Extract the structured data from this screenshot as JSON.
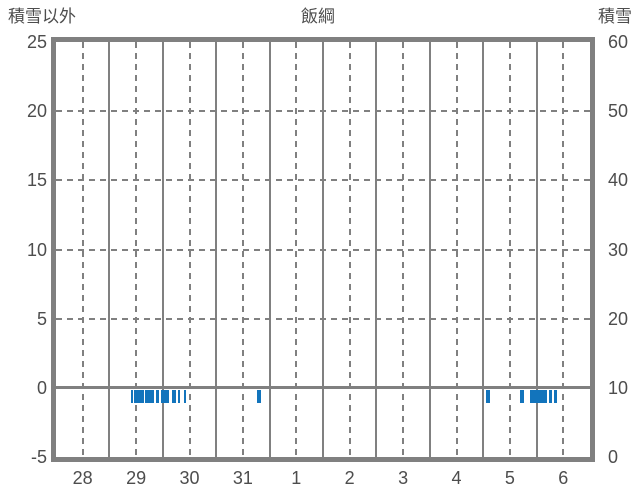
{
  "header": {
    "left_axis_title": "積雪以外",
    "title": "飯綱",
    "right_axis_title": "積雪"
  },
  "colors": {
    "grid": "#808080",
    "text": "#4d4d4d",
    "marker": "#1274bc"
  },
  "chart_data": {
    "type": "scatter",
    "subtype": "event-tick-marks",
    "title": "飯綱",
    "left_axis": {
      "label": "積雪以外",
      "min": -5,
      "max": 25,
      "tick_step": 5,
      "tick_labels": [
        "25",
        "20",
        "15",
        "10",
        "5",
        "0",
        "-5"
      ]
    },
    "right_axis": {
      "label": "積雪",
      "min": 0,
      "max": 60,
      "tick_step": 10,
      "tick_labels": [
        "60",
        "50",
        "40",
        "30",
        "20",
        "10",
        "0"
      ]
    },
    "x_axis": {
      "tick_labels": [
        "28",
        "29",
        "30",
        "31",
        "1",
        "2",
        "3",
        "4",
        "5",
        "6"
      ],
      "num_days": 10,
      "solid_grid_at_day_boundaries": true,
      "dashed_grid_at_half_days": true
    },
    "grid": {
      "horizontal_dashed_values": [
        20,
        15,
        10,
        5
      ],
      "zero_line_solid": true
    },
    "series": [
      {
        "name": "event-marks-below-zero",
        "marker_value_level": -0.5,
        "unit": "axis-days (0 = start of day 28, 10 = end of day 6)",
        "segments": [
          {
            "start": 1.4,
            "end": 1.45
          },
          {
            "start": 1.47,
            "end": 1.64
          },
          {
            "start": 1.66,
            "end": 1.84
          },
          {
            "start": 1.88,
            "end": 1.93
          },
          {
            "start": 1.96,
            "end": 2.11
          },
          {
            "start": 2.18,
            "end": 2.24
          },
          {
            "start": 2.28,
            "end": 2.33
          },
          {
            "start": 2.39,
            "end": 2.43
          },
          {
            "start": 3.77,
            "end": 3.84
          },
          {
            "start": 8.06,
            "end": 8.12
          },
          {
            "start": 8.68,
            "end": 8.77
          },
          {
            "start": 8.88,
            "end": 9.2
          },
          {
            "start": 9.23,
            "end": 9.29
          },
          {
            "start": 9.33,
            "end": 9.38
          }
        ]
      }
    ],
    "legend": null,
    "notes": "Blue tick marks hang just below the 0 line of the left axis."
  }
}
